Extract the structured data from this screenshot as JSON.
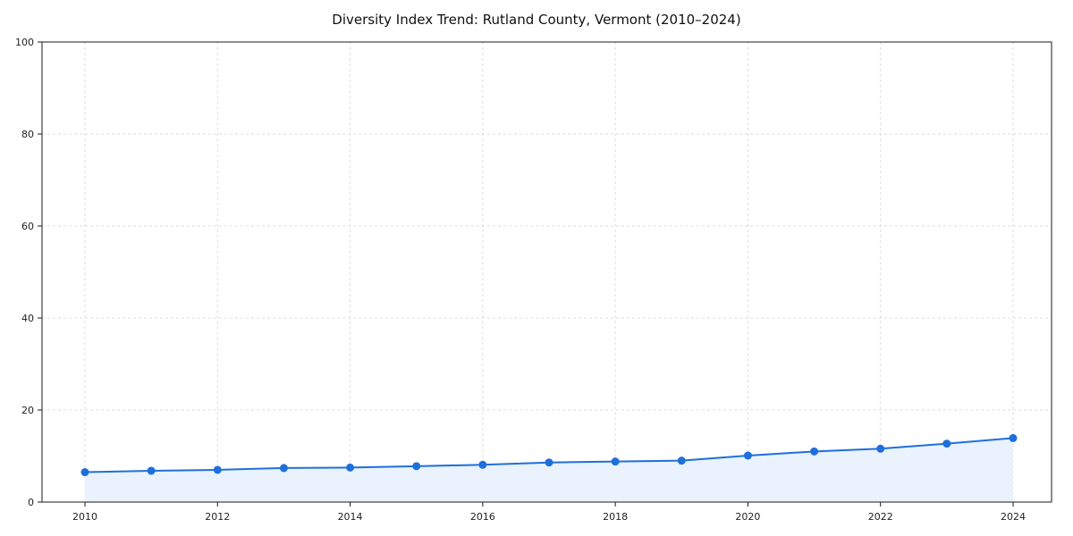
{
  "chart_data": {
    "type": "area",
    "title": "Diversity Index Trend: Rutland County, Vermont (2010–2024)",
    "xlabel": "",
    "ylabel": "",
    "x": [
      2010,
      2011,
      2012,
      2013,
      2014,
      2015,
      2016,
      2017,
      2018,
      2019,
      2020,
      2021,
      2022,
      2023,
      2024
    ],
    "series": [
      {
        "name": "Diversity Index",
        "values": [
          6.5,
          6.8,
          7.0,
          7.4,
          7.5,
          7.8,
          8.1,
          8.6,
          8.8,
          9.0,
          10.1,
          11.0,
          11.6,
          12.7,
          13.9
        ]
      }
    ],
    "ylim": [
      0,
      100
    ],
    "yticks": [
      0,
      20,
      40,
      60,
      80,
      100
    ],
    "xticks": [
      2010,
      2012,
      2014,
      2016,
      2018,
      2020,
      2022,
      2024
    ],
    "grid": true,
    "grid_style": "dashed",
    "legend_position": "none",
    "colors": {
      "line": "#1f6fdb",
      "marker": "#1f6fdb",
      "fill": "#e9f2fd",
      "grid": "#dedede",
      "spine": "#1a1a1a",
      "background": "#ffffff"
    }
  }
}
